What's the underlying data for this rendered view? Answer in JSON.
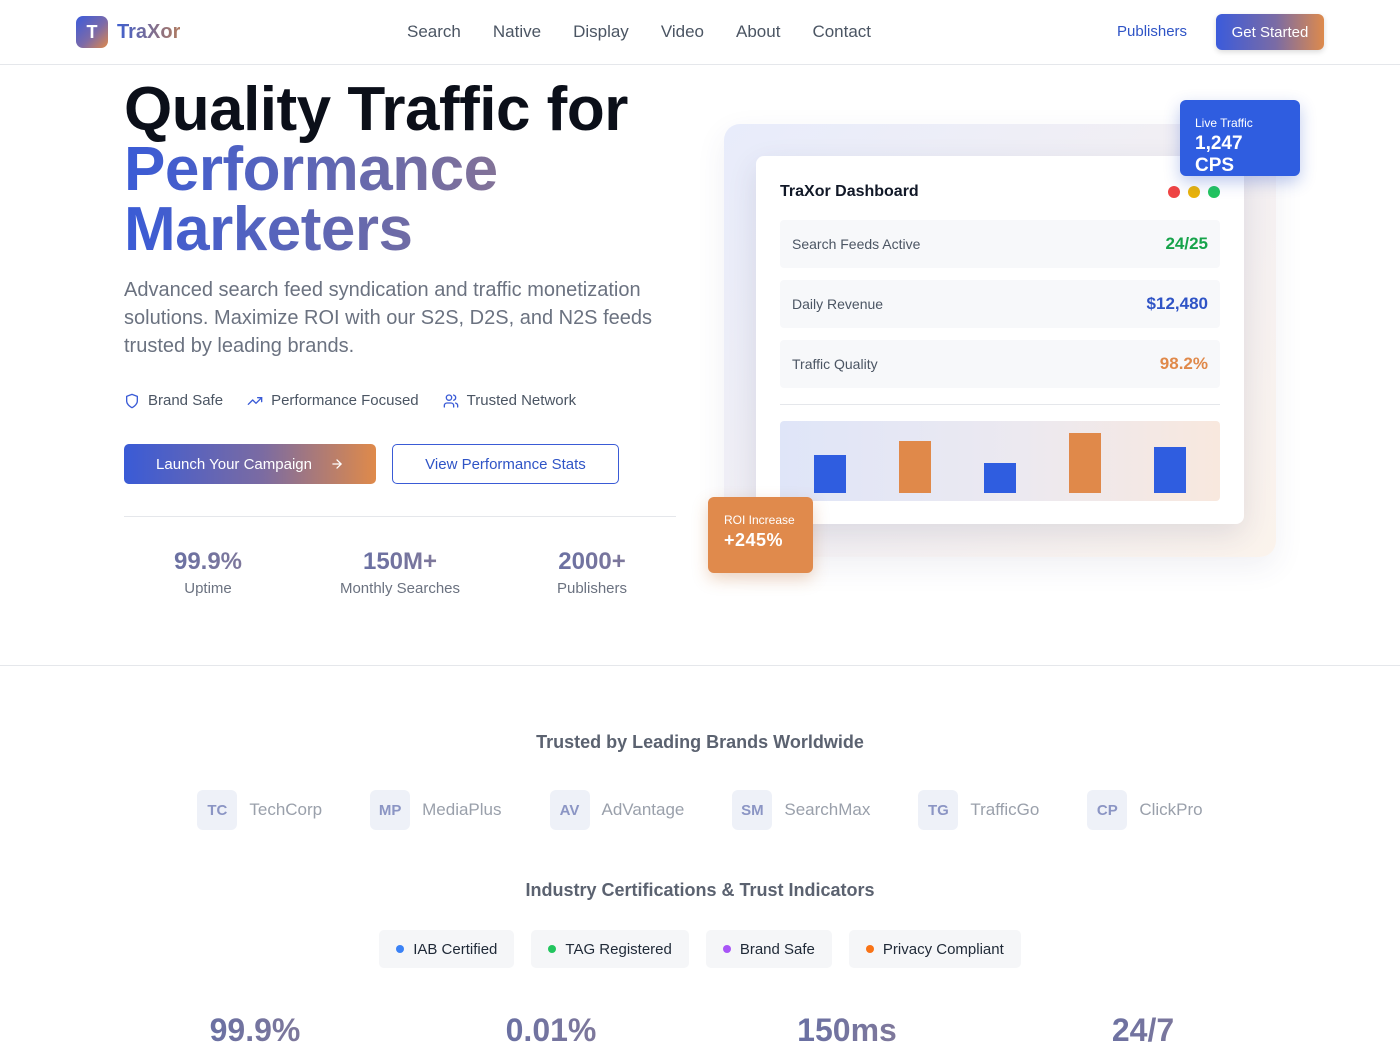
{
  "nav": {
    "logo_letter": "T",
    "logo_text": "TraXor",
    "links": [
      "Search",
      "Native",
      "Display",
      "Video",
      "About",
      "Contact"
    ],
    "publishers": "Publishers",
    "cta": "Get Started"
  },
  "hero": {
    "title_line1": "Quality Traffic for",
    "title_line2": "Performance",
    "title_line3": "Marketers",
    "description": "Advanced search feed syndication and traffic monetization solutions. Maximize ROI with our S2S, D2S, and N2S feeds trusted by leading brands.",
    "features": [
      {
        "icon": "shield-icon",
        "label": "Brand Safe"
      },
      {
        "icon": "trending-up-icon",
        "label": "Performance Focused"
      },
      {
        "icon": "users-icon",
        "label": "Trusted Network"
      }
    ],
    "primary_button": "Launch Your Campaign",
    "secondary_button": "View Performance Stats",
    "stats": [
      {
        "value": "99.9%",
        "label": "Uptime"
      },
      {
        "value": "150M+",
        "label": "Monthly Searches"
      },
      {
        "value": "2000+",
        "label": "Publishers"
      }
    ]
  },
  "dashboard": {
    "title": "TraXor Dashboard",
    "window_dot_colors": [
      "#ef4444",
      "#eab308",
      "#22c55e"
    ],
    "rows": [
      {
        "label": "Search Feeds Active",
        "value": "24/25",
        "color": "#16a34a"
      },
      {
        "label": "Daily Revenue",
        "value": "$12,480",
        "color": "#2f54c6"
      },
      {
        "label": "Traffic Quality",
        "value": "98.2%",
        "color": "#e0894a"
      }
    ],
    "mini_chart": {
      "values": [
        38,
        52,
        30,
        60,
        46
      ],
      "colors": [
        "#2f5de0",
        "#e0894a",
        "#2f5de0",
        "#e0894a",
        "#2f5de0"
      ]
    },
    "live_traffic": {
      "label": "Live Traffic",
      "value": "1,247 CPS"
    },
    "roi": {
      "label": "ROI Increase",
      "value": "+245%"
    }
  },
  "trust": {
    "title": "Trusted by Leading Brands Worldwide",
    "brands": [
      {
        "abbr": "TC",
        "name": "TechCorp"
      },
      {
        "abbr": "MP",
        "name": "MediaPlus"
      },
      {
        "abbr": "AV",
        "name": "AdVantage"
      },
      {
        "abbr": "SM",
        "name": "SearchMax"
      },
      {
        "abbr": "TG",
        "name": "TrafficGo"
      },
      {
        "abbr": "CP",
        "name": "ClickPro"
      }
    ],
    "cert_title": "Industry Certifications & Trust Indicators",
    "certs": [
      {
        "label": "IAB Certified",
        "color": "#3b82f6"
      },
      {
        "label": "TAG Registered",
        "color": "#22c55e"
      },
      {
        "label": "Brand Safe",
        "color": "#a855f7"
      },
      {
        "label": "Privacy Compliant",
        "color": "#f97316"
      }
    ],
    "bottom_stats": [
      "99.9%",
      "0.01%",
      "150ms",
      "24/7"
    ]
  },
  "colors": {
    "brand_blue": "#2f5de0",
    "brand_orange": "#e0894a"
  }
}
